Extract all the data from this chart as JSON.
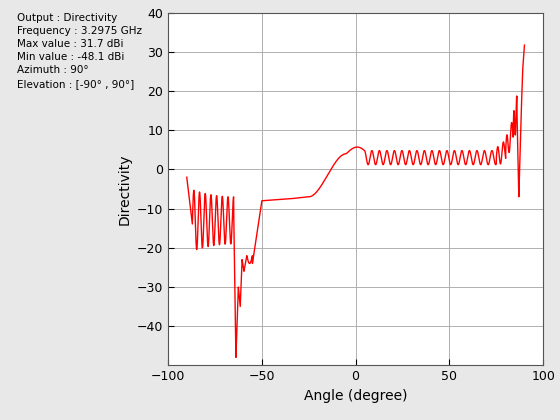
{
  "title_lines": [
    "Output : Directivity",
    "Frequency : 3.2975 GHz",
    "Max value : 31.7 dBi",
    "Min value : -48.1 dBi",
    "Azimuth : 90°",
    "Elevation : [-90° , 90°]"
  ],
  "xlabel": "Angle (degree)",
  "ylabel": "Directivity",
  "xlim": [
    -100,
    100
  ],
  "ylim": [
    -50,
    40
  ],
  "xticks": [
    -100,
    -50,
    0,
    50,
    100
  ],
  "yticks": [
    -40,
    -30,
    -20,
    -10,
    0,
    10,
    20,
    30,
    40
  ],
  "line_color": "#ff0000",
  "line_width": 1.0,
  "bg_color": "#e8e8e8",
  "axes_bg": "#ffffff",
  "grid_color": "#b0b0b0",
  "annotation_fontsize": 7.5,
  "label_fontsize": 10
}
